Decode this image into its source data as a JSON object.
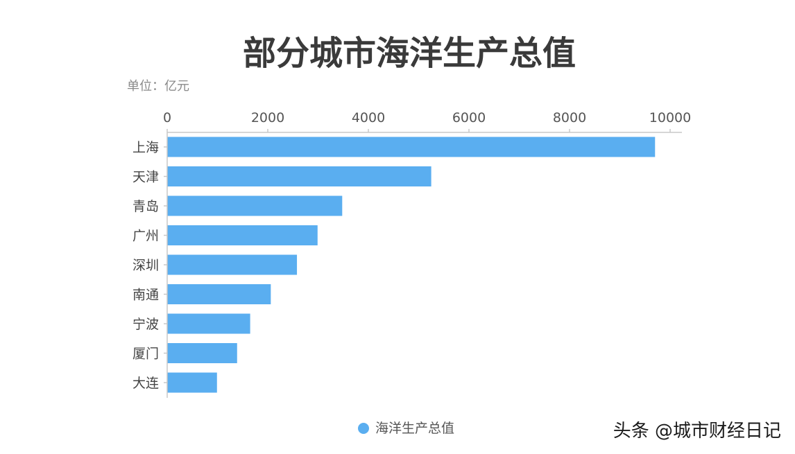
{
  "colors": {
    "bar": "#5aaef0",
    "axis": "#c8c8c8",
    "title": "#3a3a3a"
  },
  "chart_data": {
    "type": "bar",
    "orientation": "horizontal",
    "title": "部分城市海洋生产总值",
    "unit_label": "单位：亿元",
    "categories": [
      "上海",
      "天津",
      "青岛",
      "广州",
      "深圳",
      "南通",
      "宁波",
      "厦门",
      "大连"
    ],
    "series": [
      {
        "name": "海洋生产总值",
        "values": [
          9700,
          5250,
          3480,
          2990,
          2580,
          2060,
          1650,
          1390,
          990
        ]
      }
    ],
    "xlim": [
      0,
      10000
    ],
    "xticks": [
      0,
      2000,
      4000,
      6000,
      8000,
      10000
    ],
    "xtick_labels": [
      "0",
      "2000",
      "4000",
      "6000",
      "8000",
      "10000"
    ],
    "legend_position": "bottom-center",
    "grid": false
  },
  "watermark": {
    "text": "头条 @城市财经日记"
  }
}
